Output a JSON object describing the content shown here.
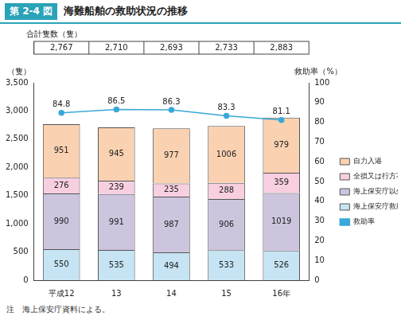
{
  "chart_data": {
    "type": "bar",
    "figure_label": "第 2-4 図",
    "title": "海難船舶の救助状況の推移",
    "note": "注　海上保安庁資料による。",
    "categories": [
      "平成12",
      "13",
      "14",
      "15",
      "16年"
    ],
    "totals": {
      "label": "合計隻数（隻）",
      "values": [
        2767,
        2710,
        2693,
        2733,
        2883
      ],
      "value_labels": [
        "2,767",
        "2,710",
        "2,693",
        "2,733",
        "2,883"
      ]
    },
    "series": [
      {
        "name": "海上保安庁救助",
        "color": "#c6e4f3",
        "values": [
          550,
          535,
          494,
          533,
          526
        ]
      },
      {
        "name": "海上保安庁以外の救助",
        "color": "#cdc5de",
        "values": [
          990,
          991,
          987,
          906,
          1019
        ]
      },
      {
        "name": "全損又は行方不明",
        "color": "#f8cfe1",
        "values": [
          276,
          239,
          235,
          288,
          359
        ]
      },
      {
        "name": "自力入港",
        "color": "#fad2b2",
        "values": [
          951,
          945,
          977,
          1006,
          979
        ]
      },
      {
        "name": "救助率",
        "color": "#3aa8d8",
        "type": "line",
        "axis": "y2",
        "marker": "circle",
        "values": [
          84.8,
          86.5,
          86.3,
          83.3,
          81.1
        ]
      }
    ],
    "y_label": "（隻）",
    "y2_label": "救助率（%）",
    "ylim": [
      0,
      3500
    ],
    "yticks": [
      0,
      500,
      {
        "value": 1000,
        "label": "1,000"
      },
      {
        "value": 1500,
        "label": "1,500"
      },
      {
        "value": 2000,
        "label": "2,000"
      },
      {
        "value": 2500,
        "label": "2,500"
      },
      {
        "value": 3000,
        "label": "3,000"
      },
      {
        "value": 3500,
        "label": "3,500"
      }
    ],
    "y2lim": [
      0,
      100
    ],
    "y2ticks": [
      0,
      10,
      20,
      30,
      40,
      50,
      60,
      70,
      80,
      90,
      100
    ],
    "stacked": true,
    "data_labels": true,
    "grid": false,
    "legend": "right"
  }
}
